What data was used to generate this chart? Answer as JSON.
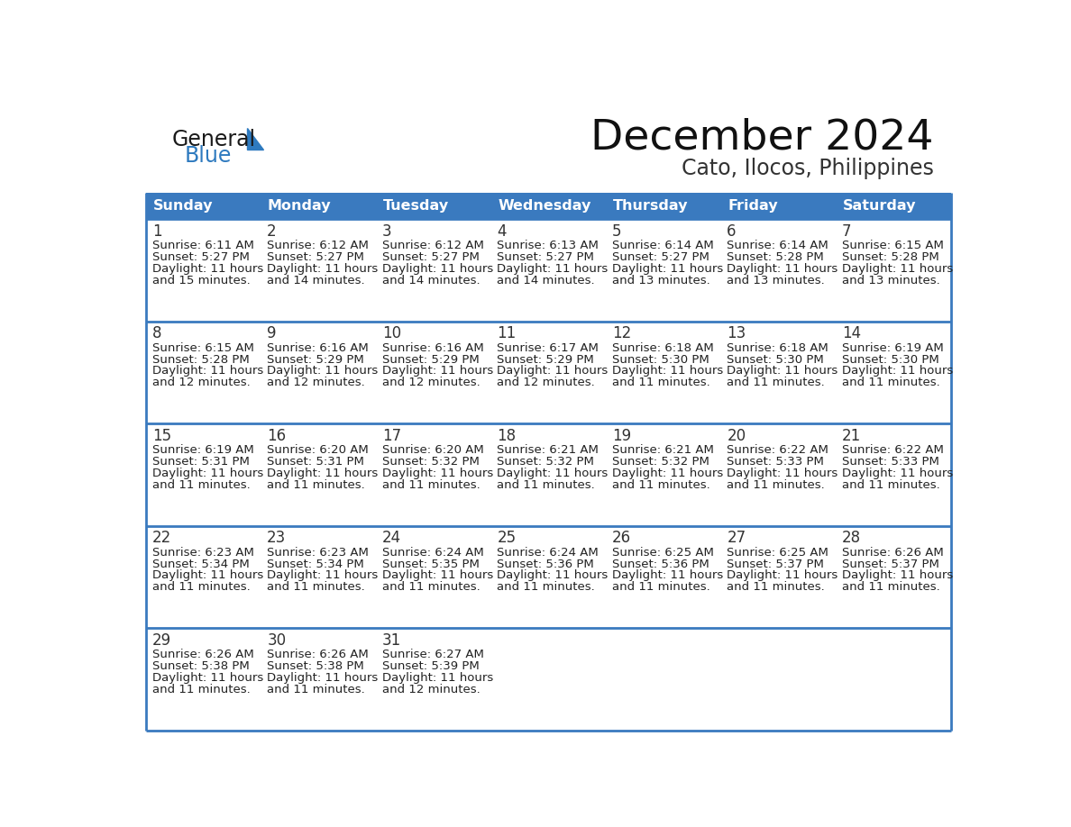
{
  "title": "December 2024",
  "subtitle": "Cato, Ilocos, Philippines",
  "header_color": "#3a7abf",
  "header_text_color": "#FFFFFF",
  "days_of_week": [
    "Sunday",
    "Monday",
    "Tuesday",
    "Wednesday",
    "Thursday",
    "Friday",
    "Saturday"
  ],
  "background_color": "#FFFFFF",
  "cell_bg_color": "#FFFFFF",
  "row_border_color": "#3a7abf",
  "text_color": "#222222",
  "day_num_color": "#333333",
  "logo_color1": "#1a1a1a",
  "logo_color2": "#2e7abf",
  "calendar_data": [
    [
      {
        "day": 1,
        "sunrise": "6:11 AM",
        "sunset": "5:27 PM",
        "daylight_line1": "Daylight: 11 hours",
        "daylight_line2": "and 15 minutes."
      },
      {
        "day": 2,
        "sunrise": "6:12 AM",
        "sunset": "5:27 PM",
        "daylight_line1": "Daylight: 11 hours",
        "daylight_line2": "and 14 minutes."
      },
      {
        "day": 3,
        "sunrise": "6:12 AM",
        "sunset": "5:27 PM",
        "daylight_line1": "Daylight: 11 hours",
        "daylight_line2": "and 14 minutes."
      },
      {
        "day": 4,
        "sunrise": "6:13 AM",
        "sunset": "5:27 PM",
        "daylight_line1": "Daylight: 11 hours",
        "daylight_line2": "and 14 minutes."
      },
      {
        "day": 5,
        "sunrise": "6:14 AM",
        "sunset": "5:27 PM",
        "daylight_line1": "Daylight: 11 hours",
        "daylight_line2": "and 13 minutes."
      },
      {
        "day": 6,
        "sunrise": "6:14 AM",
        "sunset": "5:28 PM",
        "daylight_line1": "Daylight: 11 hours",
        "daylight_line2": "and 13 minutes."
      },
      {
        "day": 7,
        "sunrise": "6:15 AM",
        "sunset": "5:28 PM",
        "daylight_line1": "Daylight: 11 hours",
        "daylight_line2": "and 13 minutes."
      }
    ],
    [
      {
        "day": 8,
        "sunrise": "6:15 AM",
        "sunset": "5:28 PM",
        "daylight_line1": "Daylight: 11 hours",
        "daylight_line2": "and 12 minutes."
      },
      {
        "day": 9,
        "sunrise": "6:16 AM",
        "sunset": "5:29 PM",
        "daylight_line1": "Daylight: 11 hours",
        "daylight_line2": "and 12 minutes."
      },
      {
        "day": 10,
        "sunrise": "6:16 AM",
        "sunset": "5:29 PM",
        "daylight_line1": "Daylight: 11 hours",
        "daylight_line2": "and 12 minutes."
      },
      {
        "day": 11,
        "sunrise": "6:17 AM",
        "sunset": "5:29 PM",
        "daylight_line1": "Daylight: 11 hours",
        "daylight_line2": "and 12 minutes."
      },
      {
        "day": 12,
        "sunrise": "6:18 AM",
        "sunset": "5:30 PM",
        "daylight_line1": "Daylight: 11 hours",
        "daylight_line2": "and 11 minutes."
      },
      {
        "day": 13,
        "sunrise": "6:18 AM",
        "sunset": "5:30 PM",
        "daylight_line1": "Daylight: 11 hours",
        "daylight_line2": "and 11 minutes."
      },
      {
        "day": 14,
        "sunrise": "6:19 AM",
        "sunset": "5:30 PM",
        "daylight_line1": "Daylight: 11 hours",
        "daylight_line2": "and 11 minutes."
      }
    ],
    [
      {
        "day": 15,
        "sunrise": "6:19 AM",
        "sunset": "5:31 PM",
        "daylight_line1": "Daylight: 11 hours",
        "daylight_line2": "and 11 minutes."
      },
      {
        "day": 16,
        "sunrise": "6:20 AM",
        "sunset": "5:31 PM",
        "daylight_line1": "Daylight: 11 hours",
        "daylight_line2": "and 11 minutes."
      },
      {
        "day": 17,
        "sunrise": "6:20 AM",
        "sunset": "5:32 PM",
        "daylight_line1": "Daylight: 11 hours",
        "daylight_line2": "and 11 minutes."
      },
      {
        "day": 18,
        "sunrise": "6:21 AM",
        "sunset": "5:32 PM",
        "daylight_line1": "Daylight: 11 hours",
        "daylight_line2": "and 11 minutes."
      },
      {
        "day": 19,
        "sunrise": "6:21 AM",
        "sunset": "5:32 PM",
        "daylight_line1": "Daylight: 11 hours",
        "daylight_line2": "and 11 minutes."
      },
      {
        "day": 20,
        "sunrise": "6:22 AM",
        "sunset": "5:33 PM",
        "daylight_line1": "Daylight: 11 hours",
        "daylight_line2": "and 11 minutes."
      },
      {
        "day": 21,
        "sunrise": "6:22 AM",
        "sunset": "5:33 PM",
        "daylight_line1": "Daylight: 11 hours",
        "daylight_line2": "and 11 minutes."
      }
    ],
    [
      {
        "day": 22,
        "sunrise": "6:23 AM",
        "sunset": "5:34 PM",
        "daylight_line1": "Daylight: 11 hours",
        "daylight_line2": "and 11 minutes."
      },
      {
        "day": 23,
        "sunrise": "6:23 AM",
        "sunset": "5:34 PM",
        "daylight_line1": "Daylight: 11 hours",
        "daylight_line2": "and 11 minutes."
      },
      {
        "day": 24,
        "sunrise": "6:24 AM",
        "sunset": "5:35 PM",
        "daylight_line1": "Daylight: 11 hours",
        "daylight_line2": "and 11 minutes."
      },
      {
        "day": 25,
        "sunrise": "6:24 AM",
        "sunset": "5:36 PM",
        "daylight_line1": "Daylight: 11 hours",
        "daylight_line2": "and 11 minutes."
      },
      {
        "day": 26,
        "sunrise": "6:25 AM",
        "sunset": "5:36 PM",
        "daylight_line1": "Daylight: 11 hours",
        "daylight_line2": "and 11 minutes."
      },
      {
        "day": 27,
        "sunrise": "6:25 AM",
        "sunset": "5:37 PM",
        "daylight_line1": "Daylight: 11 hours",
        "daylight_line2": "and 11 minutes."
      },
      {
        "day": 28,
        "sunrise": "6:26 AM",
        "sunset": "5:37 PM",
        "daylight_line1": "Daylight: 11 hours",
        "daylight_line2": "and 11 minutes."
      }
    ],
    [
      {
        "day": 29,
        "sunrise": "6:26 AM",
        "sunset": "5:38 PM",
        "daylight_line1": "Daylight: 11 hours",
        "daylight_line2": "and 11 minutes."
      },
      {
        "day": 30,
        "sunrise": "6:26 AM",
        "sunset": "5:38 PM",
        "daylight_line1": "Daylight: 11 hours",
        "daylight_line2": "and 11 minutes."
      },
      {
        "day": 31,
        "sunrise": "6:27 AM",
        "sunset": "5:39 PM",
        "daylight_line1": "Daylight: 11 hours",
        "daylight_line2": "and 12 minutes."
      },
      null,
      null,
      null,
      null
    ]
  ]
}
